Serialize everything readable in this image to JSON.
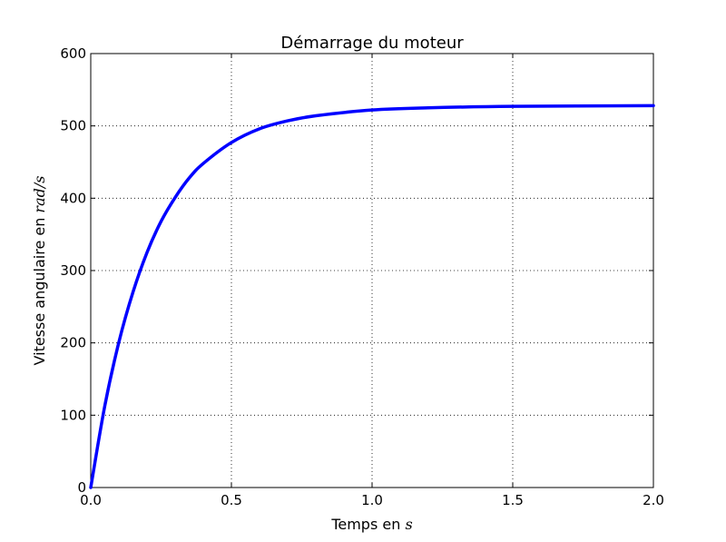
{
  "chart_data": {
    "type": "line",
    "title": "Démarrage du moteur",
    "xlabel": {
      "text": "Temps en ",
      "math": "s"
    },
    "ylabel": {
      "text": "Vitesse angulaire en ",
      "math": "rad/s"
    },
    "xlim": [
      0.0,
      2.0
    ],
    "ylim": [
      0,
      600
    ],
    "x_ticks": [
      "0.0",
      "0.5",
      "1.0",
      "1.5",
      "2.0"
    ],
    "y_ticks": [
      "0",
      "100",
      "200",
      "300",
      "400",
      "500",
      "600"
    ],
    "grid": true,
    "color": "#0000ff",
    "series": [
      {
        "x": [
          0.0,
          0.05,
          0.1,
          0.15,
          0.2,
          0.25,
          0.3,
          0.35,
          0.4,
          0.5,
          0.6,
          0.7,
          0.8,
          1.0,
          1.2,
          1.5,
          2.0
        ],
        "values": [
          0,
          113,
          201,
          270,
          325,
          368,
          401,
          428,
          448,
          477,
          496,
          507,
          514,
          522,
          525,
          527,
          528
        ]
      }
    ]
  }
}
